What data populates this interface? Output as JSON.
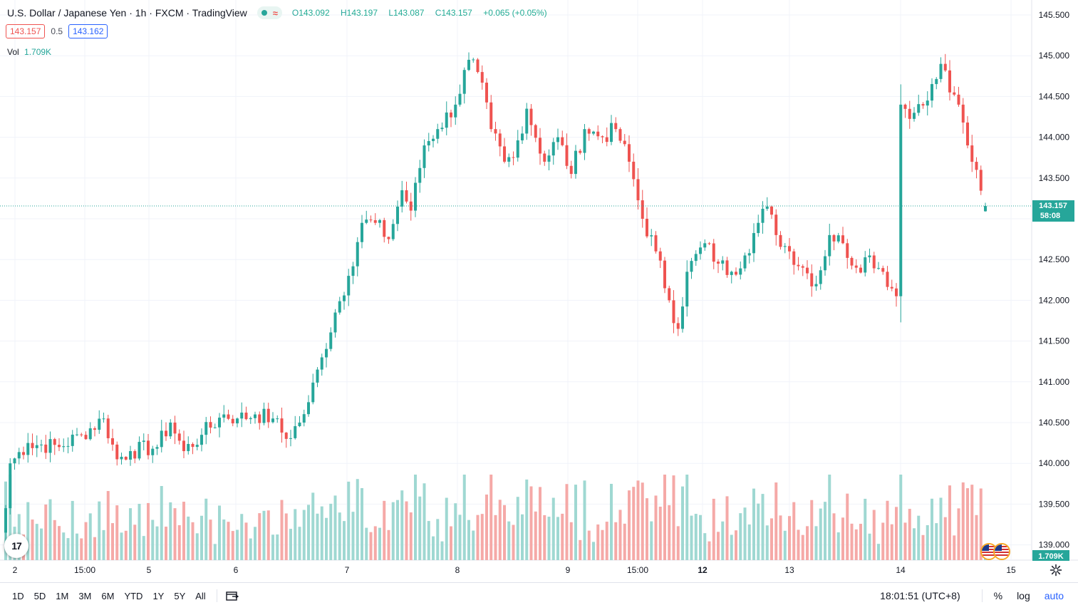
{
  "legend": {
    "symbol": "U.S. Dollar / Japanese Yen",
    "interval": "1h",
    "exchange": "FXCM",
    "source": "TradingView",
    "status_wave": "≈",
    "o_label": "O",
    "o_value": "143.092",
    "h_label": "H",
    "h_value": "143.197",
    "l_label": "L",
    "l_value": "143.087",
    "c_label": "C",
    "c_value": "143.157",
    "change": "+0.065 (+0.05%)"
  },
  "quote": {
    "sell": "143.157",
    "spread": "0.5",
    "buy": "143.162"
  },
  "volume": {
    "label": "Vol",
    "value": "1.709K",
    "badge": "1.709K"
  },
  "last_price": {
    "price": "143.157",
    "countdown": "58:08"
  },
  "price_axis": {
    "ticks": [
      "145.500",
      "145.000",
      "144.500",
      "144.000",
      "143.500",
      "143.000",
      "142.500",
      "142.000",
      "141.500",
      "141.000",
      "140.500",
      "140.000",
      "139.500",
      "139.000"
    ]
  },
  "time_axis": {
    "labels": [
      "2",
      "15:00",
      "5",
      "6",
      "7",
      "8",
      "9",
      "15:00",
      "12",
      "13",
      "14",
      "15"
    ],
    "bold": [
      "12"
    ]
  },
  "logo_text": "17",
  "periods": [
    "1D",
    "5D",
    "1M",
    "3M",
    "6M",
    "YTD",
    "1Y",
    "5Y",
    "All"
  ],
  "bottom": {
    "clock": "18:01:51 (UTC+8)",
    "percent": "%",
    "log": "log",
    "auto": "auto"
  },
  "colors": {
    "up": "#26a69a",
    "down": "#ef5350",
    "vol_up": "#9fd8d2",
    "vol_down": "#f5a9a7",
    "accent": "#2962ff"
  },
  "chart_data": {
    "type": "candlestick",
    "title": "U.S. Dollar / Japanese Yen · 1h · FXCM",
    "y_axis": {
      "range": [
        138.8,
        145.7
      ],
      "side": "right"
    },
    "x_axis": {
      "labels": [
        "2",
        "15:00",
        "5",
        "6",
        "7",
        "8",
        "9",
        "15:00",
        "12",
        "13",
        "14",
        "15"
      ]
    },
    "grid": true,
    "anchors": [
      {
        "i": 0,
        "close": 139.45
      },
      {
        "i": 1,
        "close": 140.0
      },
      {
        "i": 5,
        "close": 140.25
      },
      {
        "i": 12,
        "close": 140.2
      },
      {
        "i": 17,
        "close": 140.35
      },
      {
        "i": 22,
        "close": 140.55
      },
      {
        "i": 25,
        "close": 140.05
      },
      {
        "i": 28,
        "close": 140.15
      },
      {
        "i": 34,
        "close": 140.2
      },
      {
        "i": 37,
        "close": 140.5
      },
      {
        "i": 40,
        "close": 140.15
      },
      {
        "i": 44,
        "close": 140.35
      },
      {
        "i": 49,
        "close": 140.6
      },
      {
        "i": 52,
        "close": 140.55
      },
      {
        "i": 56,
        "close": 140.6
      },
      {
        "i": 60,
        "close": 140.55
      },
      {
        "i": 63,
        "close": 140.3
      },
      {
        "i": 66,
        "close": 140.5
      },
      {
        "i": 68,
        "close": 140.75
      },
      {
        "i": 71,
        "close": 141.3
      },
      {
        "i": 74,
        "close": 141.85
      },
      {
        "i": 77,
        "close": 142.3
      },
      {
        "i": 80,
        "close": 142.95
      },
      {
        "i": 83,
        "close": 142.95
      },
      {
        "i": 86,
        "close": 142.75
      },
      {
        "i": 89,
        "close": 143.35
      },
      {
        "i": 91,
        "close": 143.1
      },
      {
        "i": 94,
        "close": 143.9
      },
      {
        "i": 97,
        "close": 144.1
      },
      {
        "i": 101,
        "close": 144.4
      },
      {
        "i": 104,
        "close": 144.95
      },
      {
        "i": 106,
        "close": 144.8
      },
      {
        "i": 109,
        "close": 144.1
      },
      {
        "i": 112,
        "close": 143.7
      },
      {
        "i": 114,
        "close": 143.75
      },
      {
        "i": 117,
        "close": 144.35
      },
      {
        "i": 121,
        "close": 143.7
      },
      {
        "i": 124,
        "close": 144.0
      },
      {
        "i": 127,
        "close": 143.55
      },
      {
        "i": 130,
        "close": 144.1
      },
      {
        "i": 134,
        "close": 144.0
      },
      {
        "i": 137,
        "close": 144.1
      },
      {
        "i": 140,
        "close": 143.7
      },
      {
        "i": 143,
        "close": 143.0
      },
      {
        "i": 146,
        "close": 142.6
      },
      {
        "i": 149,
        "close": 142.0
      },
      {
        "i": 151,
        "close": 141.65
      },
      {
        "i": 153,
        "close": 142.35
      },
      {
        "i": 157,
        "close": 142.7
      },
      {
        "i": 160,
        "close": 142.45
      },
      {
        "i": 163,
        "close": 142.35
      },
      {
        "i": 166,
        "close": 142.55
      },
      {
        "i": 169,
        "close": 142.95
      },
      {
        "i": 171,
        "close": 143.15
      },
      {
        "i": 173,
        "close": 142.8
      },
      {
        "i": 176,
        "close": 142.6
      },
      {
        "i": 179,
        "close": 142.4
      },
      {
        "i": 182,
        "close": 142.2
      },
      {
        "i": 185,
        "close": 142.8
      },
      {
        "i": 188,
        "close": 142.7
      },
      {
        "i": 191,
        "close": 142.4
      },
      {
        "i": 194,
        "close": 142.55
      },
      {
        "i": 197,
        "close": 142.35
      },
      {
        "i": 200,
        "close": 142.05
      },
      {
        "i": 201,
        "close": 144.4
      },
      {
        "i": 204,
        "close": 144.3
      },
      {
        "i": 207,
        "close": 144.45
      },
      {
        "i": 210,
        "close": 144.9
      },
      {
        "i": 212,
        "close": 144.55
      },
      {
        "i": 214,
        "close": 144.4
      },
      {
        "i": 216,
        "close": 143.9
      },
      {
        "i": 218,
        "close": 143.6
      },
      {
        "i": 220,
        "close": 143.15
      }
    ],
    "candle_count": 221,
    "last": {
      "open": 143.092,
      "high": 143.197,
      "low": 143.087,
      "close": 143.157,
      "volume": "1.709K"
    }
  }
}
